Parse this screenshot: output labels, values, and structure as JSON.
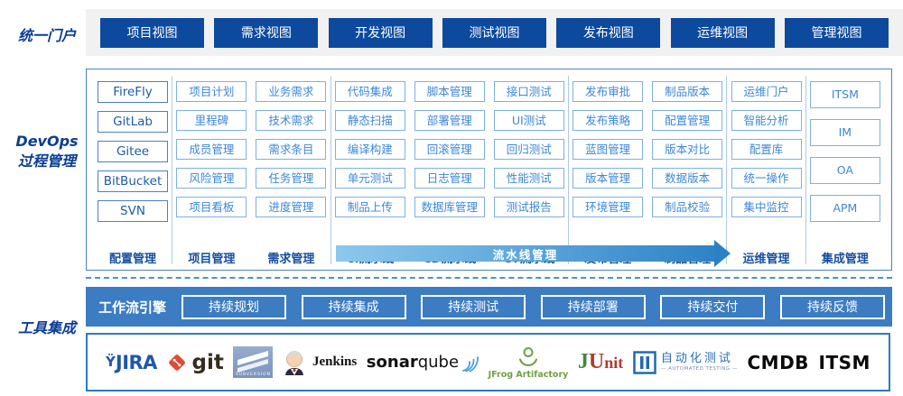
{
  "portal": {
    "label": "统一门户",
    "views": [
      "项目视图",
      "需求视图",
      "开发视图",
      "测试视图",
      "发布视图",
      "运维视图",
      "管理视图"
    ]
  },
  "process": {
    "label_line1": "DevOps",
    "label_line2": "过程管理",
    "pipeline_arrow": "流水线管理",
    "groups": [
      {
        "style": "tool",
        "columns": [
          {
            "name": "配置管理",
            "items": [
              "FireFly",
              "GitLab",
              "Gitee",
              "BitBucket",
              "SVN"
            ]
          }
        ]
      },
      {
        "columns": [
          {
            "name": "项目管理",
            "items": [
              "项目计划",
              "里程碑",
              "成员管理",
              "风险管理",
              "项目看板"
            ]
          },
          {
            "name": "需求管理",
            "items": [
              "业务需求",
              "技术需求",
              "需求条目",
              "任务管理",
              "进度管理"
            ]
          }
        ]
      },
      {
        "columns": [
          {
            "name": "CI流水线",
            "items": [
              "代码集成",
              "静态扫描",
              "编译构建",
              "单元测试",
              "制品上传"
            ]
          },
          {
            "name": "CD流水线",
            "items": [
              "脚本管理",
              "部署管理",
              "回滚管理",
              "日志管理",
              "数据库管理"
            ]
          },
          {
            "name": "CT流水线",
            "items": [
              "接口测试",
              "UI测试",
              "回归测试",
              "性能测试",
              "测试报告"
            ]
          }
        ]
      },
      {
        "columns": [
          {
            "name": "发布管理",
            "items": [
              "发布审批",
              "发布策略",
              "蓝图管理",
              "版本管理",
              "环境管理"
            ]
          },
          {
            "name": "制品管理",
            "items": [
              "制品版本",
              "配置管理",
              "版本对比",
              "数据版本",
              "制品校验"
            ]
          }
        ]
      },
      {
        "columns": [
          {
            "name": "运维管理",
            "items": [
              "运维门户",
              "智能分析",
              "配置库",
              "统一操作",
              "集中监控"
            ]
          }
        ]
      },
      {
        "style": "tall",
        "columns": [
          {
            "name": "集成管理",
            "items": [
              "ITSM",
              "IM",
              "OA",
              "APM"
            ]
          }
        ]
      }
    ]
  },
  "tools": {
    "label": "工具集成",
    "workflow_engine": "工作流引擎",
    "stages": [
      "持续规划",
      "持续集成",
      "持续测试",
      "持续部署",
      "持续交付",
      "持续反馈"
    ],
    "logos": {
      "jira": {
        "mark": "Ϋ",
        "text": "JIRA"
      },
      "git": {
        "text": "git"
      },
      "subversion": {
        "text": "SUBVERSION"
      },
      "jenkins": {
        "text": "Jenkins"
      },
      "sonarqube": {
        "bold": "sonar",
        "light": "qube"
      },
      "jfrog": {
        "text": "JFrog Artifactory"
      },
      "junit": {
        "j": "J",
        "u": "U",
        "nit": "nit"
      },
      "autotest": {
        "text": "自动化测试",
        "subtext": "— AUTOMATED TESTING —"
      },
      "cmdb": {
        "text": "CMDB"
      },
      "itsm": {
        "text": "ITSM"
      }
    }
  },
  "colors": {
    "primary_dark_blue": "#0d4a9e",
    "side_label_blue": "#0a3d94",
    "item_border_blue": "#7fb0e0",
    "item_text_blue": "#3d87d8",
    "column_label_blue": "#164f9f",
    "workflow_bar_blue": "#3c7cc2",
    "arrow_gradient_start": "#8cc8ee",
    "arrow_gradient_end": "#2e83c6",
    "portal_strip_gray": "#f1f1f1",
    "logos_border_blue": "#2e79c8"
  }
}
